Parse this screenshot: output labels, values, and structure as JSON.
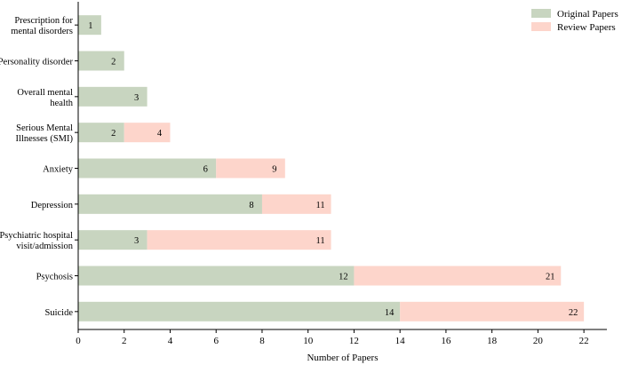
{
  "chart_data": {
    "type": "bar",
    "orientation": "horizontal",
    "stacked": true,
    "categories": [
      [
        "Prescription for",
        "mental disorders"
      ],
      [
        "Personality disorder"
      ],
      [
        "Overall mental",
        "health"
      ],
      [
        "Serious Mental",
        "Illnesses (SMI)"
      ],
      [
        "Anxiety"
      ],
      [
        "Depression"
      ],
      [
        "Psychiatric hospital",
        "visit/admission"
      ],
      [
        "Psychosis"
      ],
      [
        "Suicide"
      ]
    ],
    "series": [
      {
        "name": "Original Papers",
        "color": "#c8d5c0",
        "values": [
          1,
          2,
          3,
          2,
          6,
          8,
          3,
          12,
          14
        ]
      },
      {
        "name": "Review Papers",
        "color": "#fdd5cb",
        "values": [
          0,
          0,
          0,
          2,
          3,
          3,
          8,
          9,
          8
        ]
      }
    ],
    "data_labels": [
      [
        "1"
      ],
      [
        "2"
      ],
      [
        "3"
      ],
      [
        "2",
        "4"
      ],
      [
        "6",
        "9"
      ],
      [
        "8",
        "11"
      ],
      [
        "3",
        "11"
      ],
      [
        "12",
        "21"
      ],
      [
        "14",
        "22"
      ]
    ],
    "xlabel": "Number of Papers",
    "ylabel": "",
    "xlim": [
      0,
      23
    ],
    "xticks": [
      0,
      2,
      4,
      6,
      8,
      10,
      12,
      14,
      16,
      18,
      20,
      22
    ],
    "grid": false,
    "legend_position": "top-right"
  }
}
